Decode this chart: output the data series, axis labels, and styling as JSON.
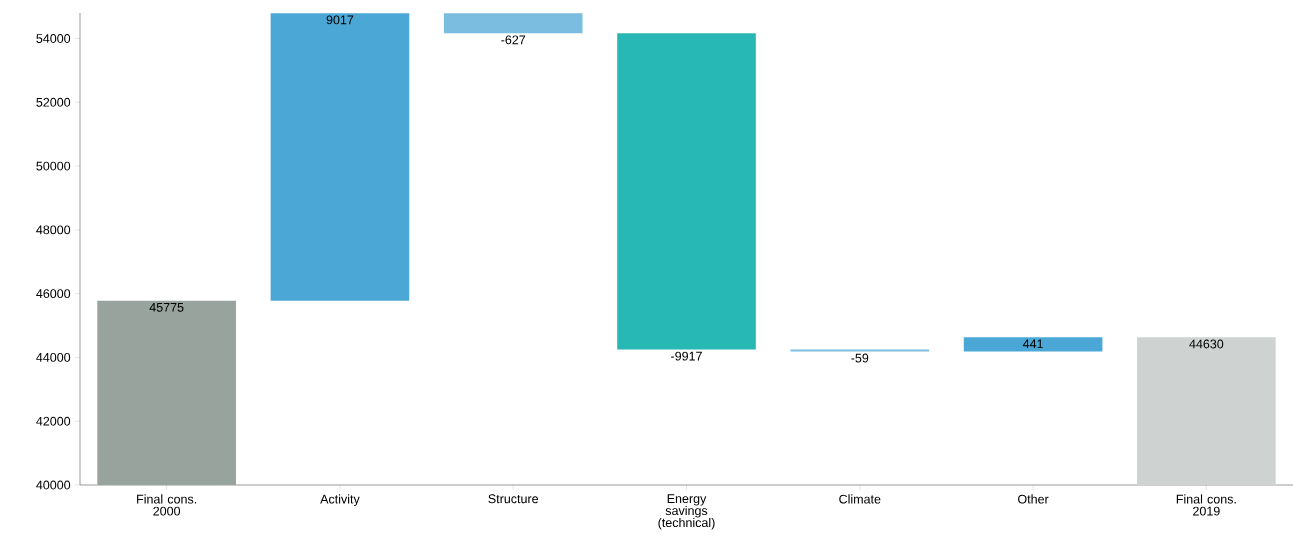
{
  "chart_data": {
    "type": "bar",
    "categories": [
      "Final cons. 2000",
      "Activity",
      "Structure",
      "Energy savings (technical)",
      "Climate",
      "Other",
      "Final cons. 2019"
    ],
    "values": [
      45775,
      9017,
      -627,
      -9917,
      -59,
      441,
      44630
    ],
    "base": [
      null,
      45775,
      54792,
      54165,
      44248,
      44189,
      null
    ],
    "colors": [
      "#97a39c",
      "#4ba8d6",
      "#7bbde0",
      "#27b8b5",
      "#7bbde0",
      "#4ba8d6",
      "#ced3d1"
    ],
    "value_labels": [
      "45775",
      "9017",
      "-627",
      "-9917",
      "-59",
      "441",
      "44630"
    ],
    "ylim": [
      40000,
      54800
    ],
    "yticks": [
      40000,
      42000,
      44000,
      46000,
      48000,
      50000,
      52000,
      54000
    ],
    "grid": false
  }
}
